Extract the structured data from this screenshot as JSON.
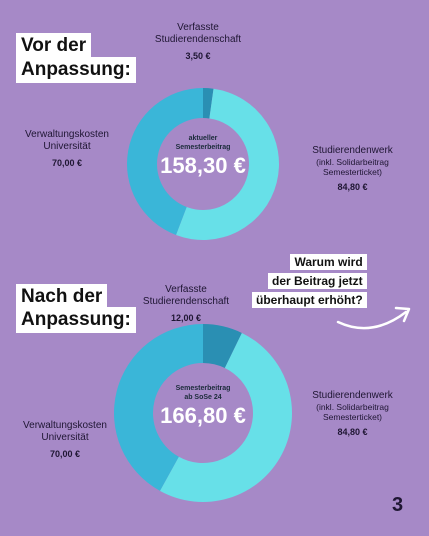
{
  "chart_data": [
    {
      "type": "donut",
      "heading_lines": [
        "Vor der",
        "Anpassung:"
      ],
      "center_caption_lines": [
        "aktueller",
        "Semesterbeitrag"
      ],
      "center_value": "158,30 €",
      "total": 158.3,
      "slices": [
        {
          "name_lines": [
            "Verfasste",
            "Studierendenschaft"
          ],
          "value": 3.5,
          "value_label": "3,50 €",
          "color": "#2a8fb3"
        },
        {
          "name_lines": [
            "Studierendenwerk"
          ],
          "note_lines": [
            "(inkl. Solidarbeitrag",
            "Semesterticket)"
          ],
          "value": 84.8,
          "value_label": "84,80 €",
          "color": "#67e0e8"
        },
        {
          "name_lines": [
            "Verwaltungskosten",
            "Universität"
          ],
          "value": 70.0,
          "value_label": "70,00 €",
          "color": "#3ab6d8"
        }
      ]
    },
    {
      "type": "donut",
      "heading_lines": [
        "Nach der",
        "Anpassung:"
      ],
      "center_caption_lines": [
        "Semesterbeitrag",
        "ab SoSe 24"
      ],
      "center_value": "166,80 €",
      "total": 166.8,
      "slices": [
        {
          "name_lines": [
            "Verfasste",
            "Studierendenschaft"
          ],
          "value": 12.0,
          "value_label": "12,00 €",
          "color": "#2a8fb3"
        },
        {
          "name_lines": [
            "Studierendenwerk"
          ],
          "note_lines": [
            "(inkl. Solidarbeitrag",
            "Semesterticket)"
          ],
          "value": 84.8,
          "value_label": "84,80 €",
          "color": "#67e0e8"
        },
        {
          "name_lines": [
            "Verwaltungskosten",
            "Universität"
          ],
          "value": 70.0,
          "value_label": "70,00 €",
          "color": "#3ab6d8"
        }
      ]
    }
  ],
  "question_lines": [
    "Warum wird",
    "der Beitrag jetzt",
    "überhaupt erhöht?"
  ],
  "page_number": "3",
  "colors": {
    "background": "#a689c7"
  }
}
